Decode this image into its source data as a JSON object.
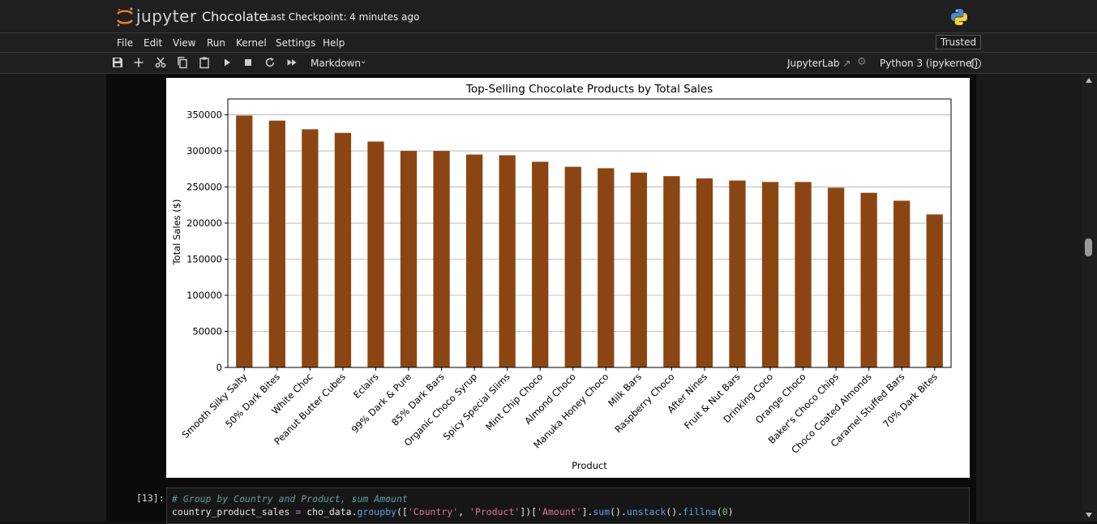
{
  "header": {
    "brand": "jupyter",
    "notebook_title": "Chocolate",
    "checkpoint": "Last Checkpoint: 4 minutes ago",
    "trusted": "Trusted"
  },
  "menu": [
    "File",
    "Edit",
    "View",
    "Run",
    "Kernel",
    "Settings",
    "Help"
  ],
  "toolbar": {
    "icons": [
      "save-icon",
      "add-cell-icon",
      "cut-icon",
      "copy-icon",
      "paste-icon",
      "run-icon",
      "stop-icon",
      "restart-icon",
      "fast-forward-icon"
    ],
    "cell_type": "Markdown",
    "jupyterlab": "JupyterLab",
    "kernel": "Python 3 (ipykernel)"
  },
  "code_cell": {
    "prompt": "[13]:",
    "comment": "# Group by Country and Product, sum Amount",
    "code": {
      "var": "country_product_sales",
      "eq": " = ",
      "obj": "cho_data.",
      "fn1": "groupby",
      "p1": "([",
      "s1": "'Country'",
      "comma": ", ",
      "s2": "'Product'",
      "p2": "])[",
      "s3": "'Amount'",
      "p3": "].",
      "fn2": "sum",
      "p4": "().",
      "fn3": "unstack",
      "p5": "().",
      "fn4": "fillna",
      "p6": "(",
      "num": "0",
      "p7": ")"
    }
  },
  "chart_data": {
    "type": "bar",
    "title": "Top-Selling Chocolate Products by Total Sales",
    "xlabel": "Product",
    "ylabel": "Total Sales ($)",
    "ylim": [
      0,
      372000
    ],
    "yticks": [
      "0",
      "50000",
      "100000",
      "150000",
      "200000",
      "250000",
      "300000",
      "350000"
    ],
    "ytick_values": [
      0,
      50000,
      100000,
      150000,
      200000,
      250000,
      300000,
      350000
    ],
    "grid": "horizontal",
    "bar_color": "#8b4513",
    "categories": [
      "Smooth Silky Salty",
      "50% Dark Bites",
      "White Choc",
      "Peanut Butter Cubes",
      "Eclairs",
      "99% Dark & Pure",
      "85% Dark Bars",
      "Organic Choco Syrup",
      "Spicy Special Slims",
      "Mint Chip Choco",
      "Almond Choco",
      "Manuka Honey Choco",
      "Milk Bars",
      "Raspberry Choco",
      "After Nines",
      "Fruit & Nut Bars",
      "Drinking Coco",
      "Orange Choco",
      "Baker's Choco Chips",
      "Choco Coated Almonds",
      "Caramel Stuffed Bars",
      "70% Dark Bites"
    ],
    "values": [
      349000,
      342000,
      330000,
      325000,
      313000,
      300000,
      300000,
      295000,
      294000,
      285000,
      278000,
      276000,
      270000,
      265000,
      262000,
      259000,
      257000,
      257000,
      249000,
      242000,
      231000,
      212000
    ]
  }
}
